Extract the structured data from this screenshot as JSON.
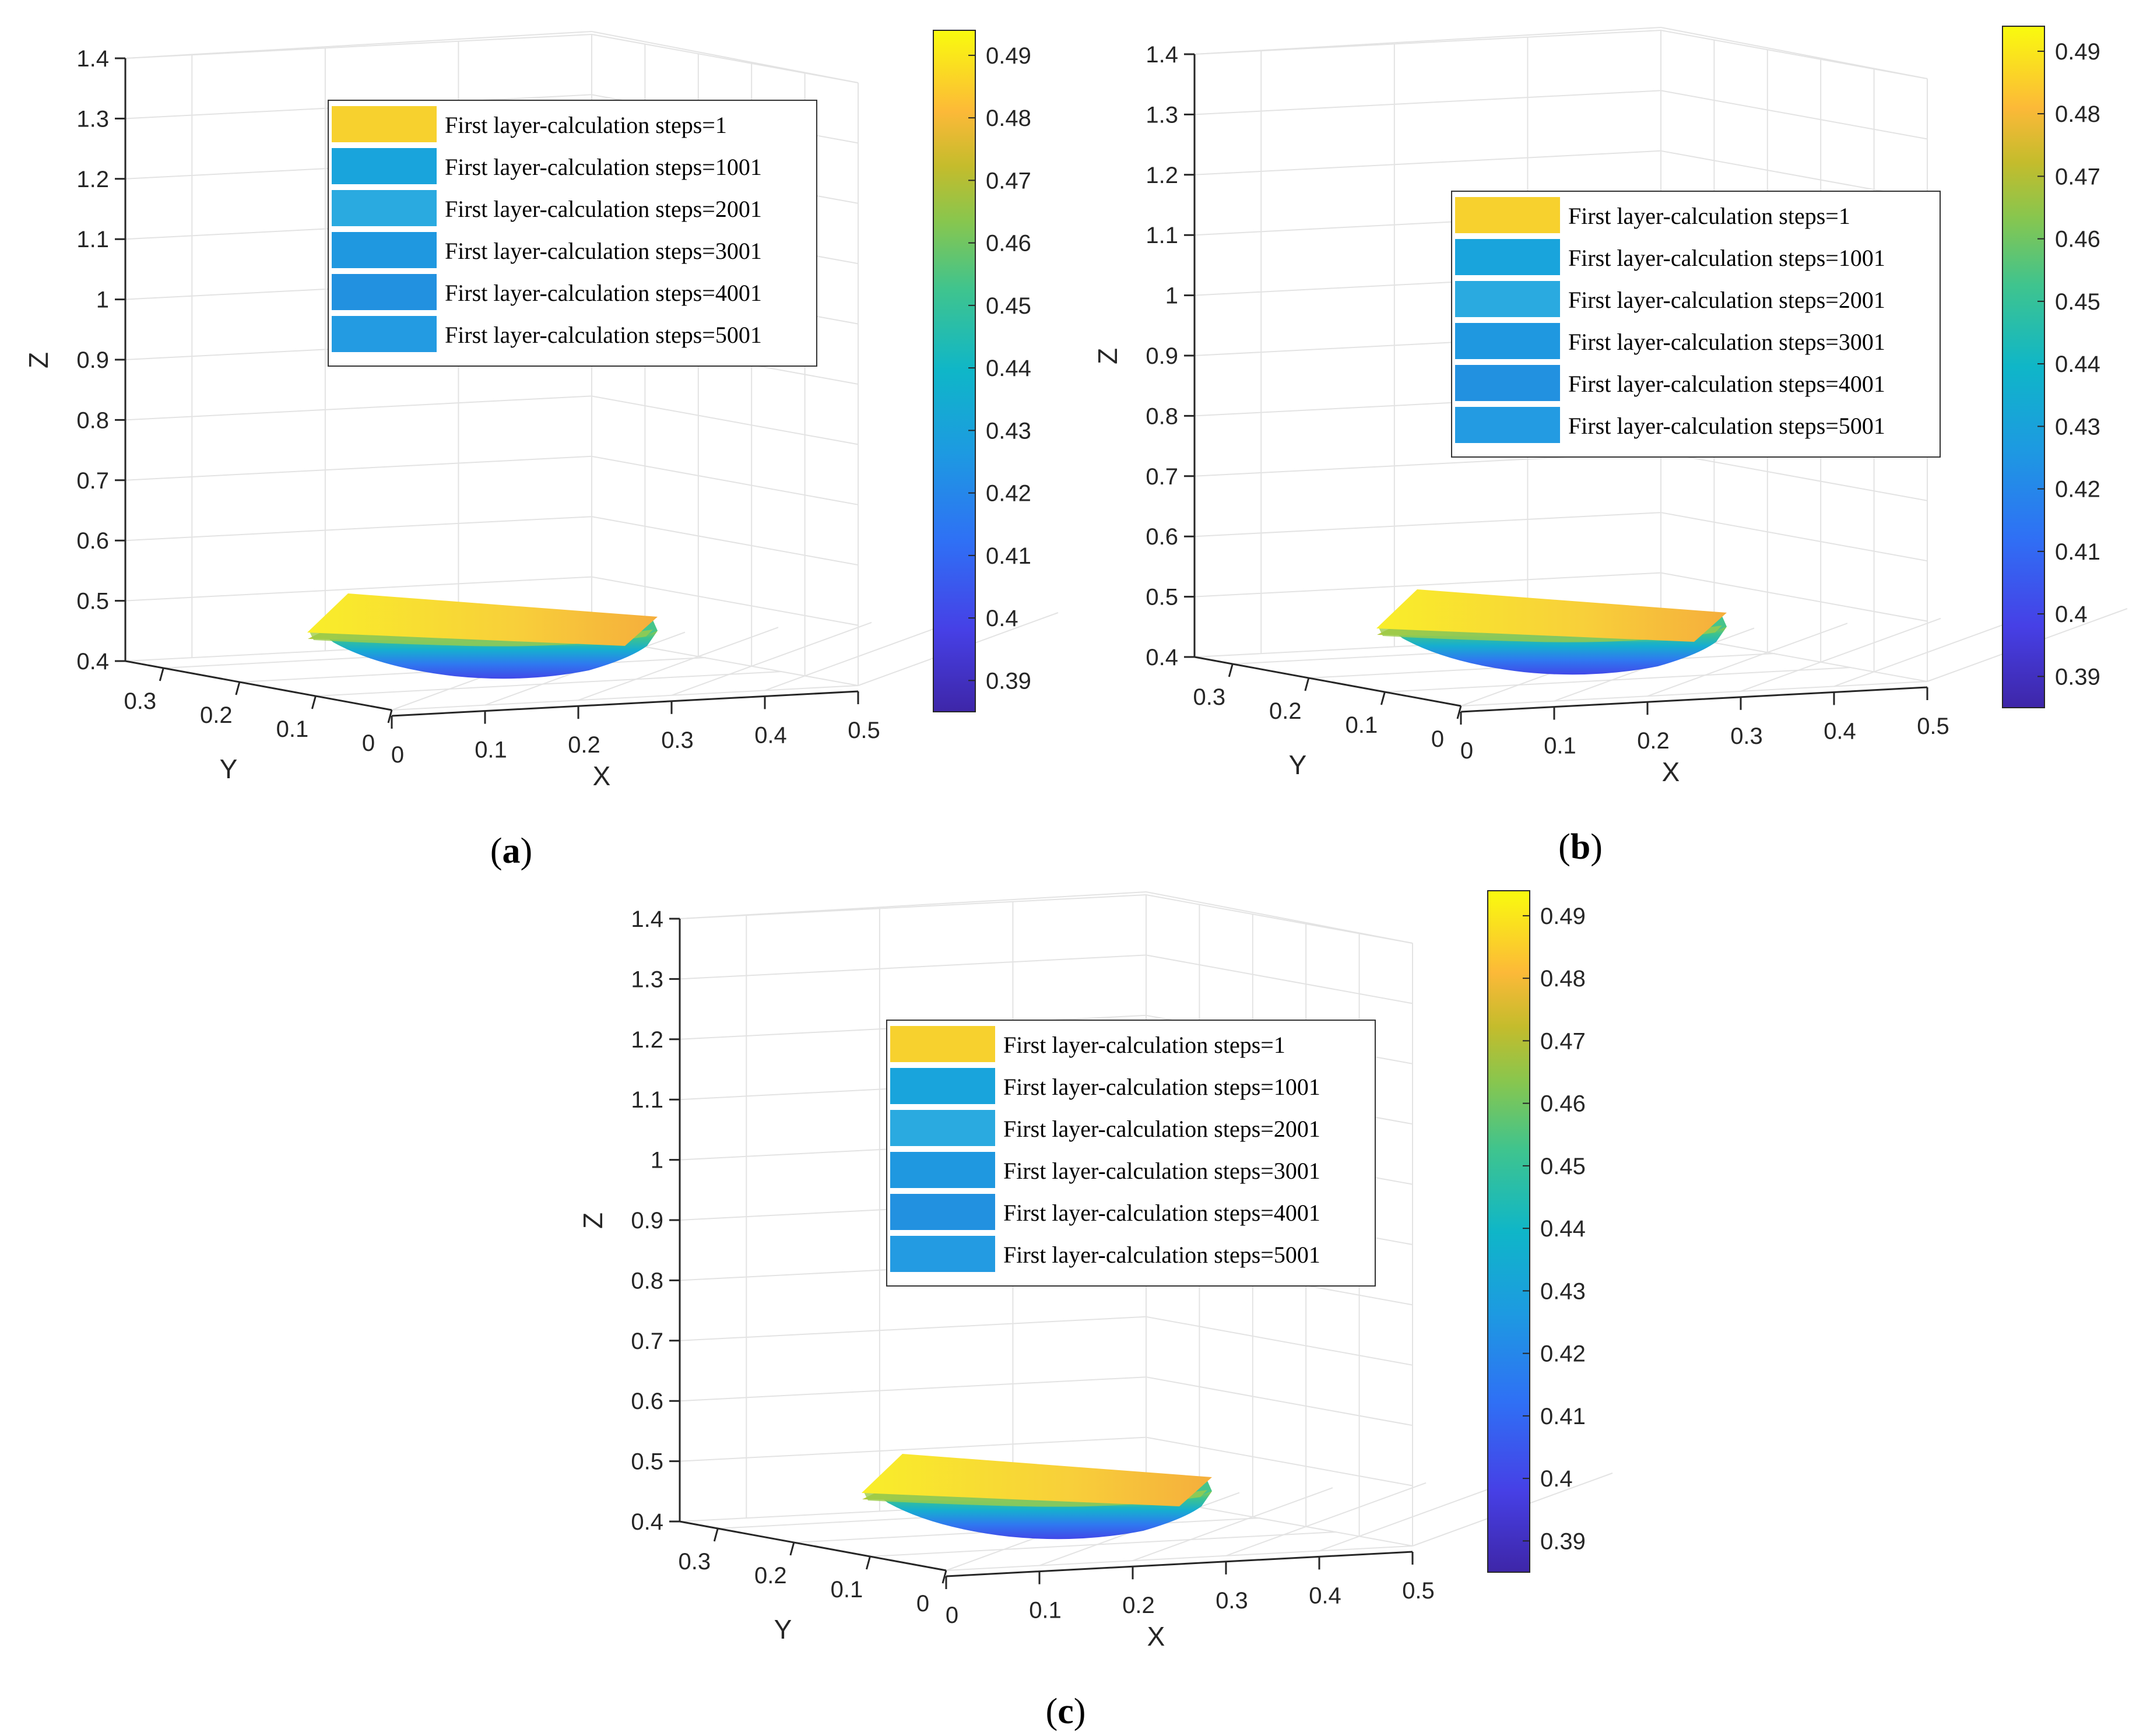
{
  "colors": {
    "yellow_surface": "#f7d23a",
    "orange_surface": "#f5b13c",
    "grid": "#e3e3e3",
    "axis": "#262626",
    "legend_swatches": [
      "#f7d12e",
      "#19a4dc",
      "#2aaae0",
      "#1f98e0",
      "#2291e0",
      "#239be2"
    ]
  },
  "chart_data": [
    {
      "panel_label": "a",
      "type": "surface3d",
      "xlabel": "X",
      "ylabel": "Y",
      "zlabel": "Z",
      "xlim": [
        0,
        0.5
      ],
      "ylim": [
        0,
        0.35
      ],
      "zlim": [
        0.4,
        1.4
      ],
      "x_ticks": [
        "0",
        "0.1",
        "0.2",
        "0.3",
        "0.4",
        "0.5"
      ],
      "y_ticks": [
        "0",
        "0.1",
        "0.2",
        "0.3"
      ],
      "z_ticks": [
        "0.4",
        "0.5",
        "0.6",
        "0.7",
        "0.8",
        "0.9",
        "1",
        "1.1",
        "1.2",
        "1.3",
        "1.4"
      ],
      "colorbar": {
        "range": [
          0.385,
          0.494
        ],
        "ticks": [
          "0.39",
          "0.4",
          "0.41",
          "0.42",
          "0.43",
          "0.44",
          "0.45",
          "0.46",
          "0.47",
          "0.48",
          "0.49"
        ]
      },
      "legend": [
        "First layer-calculation steps=1",
        "First layer-calculation steps=1001",
        "First layer-calculation steps=2001",
        "First layer-calculation steps=3001",
        "First layer-calculation steps=4001",
        "First layer-calculation steps=5001"
      ],
      "surface": {
        "top_z": 0.49,
        "bottom_z": 0.4
      }
    },
    {
      "panel_label": "b",
      "type": "surface3d",
      "xlabel": "X",
      "ylabel": "Y",
      "zlabel": "Z",
      "xlim": [
        0,
        0.5
      ],
      "ylim": [
        0,
        0.35
      ],
      "zlim": [
        0.4,
        1.4
      ],
      "x_ticks": [
        "0",
        "0.1",
        "0.2",
        "0.3",
        "0.4",
        "0.5"
      ],
      "y_ticks": [
        "0",
        "0.1",
        "0.2",
        "0.3"
      ],
      "z_ticks": [
        "0.4",
        "0.5",
        "0.6",
        "0.7",
        "0.8",
        "0.9",
        "1",
        "1.1",
        "1.2",
        "1.3",
        "1.4"
      ],
      "colorbar": {
        "range": [
          0.385,
          0.494
        ],
        "ticks": [
          "0.39",
          "0.4",
          "0.41",
          "0.42",
          "0.43",
          "0.44",
          "0.45",
          "0.46",
          "0.47",
          "0.48",
          "0.49"
        ]
      },
      "legend": [
        "First layer-calculation steps=1",
        "First layer-calculation steps=1001",
        "First layer-calculation steps=2001",
        "First layer-calculation steps=3001",
        "First layer-calculation steps=4001",
        "First layer-calculation steps=5001"
      ],
      "surface": {
        "top_z": 0.49,
        "bottom_z": 0.4
      }
    },
    {
      "panel_label": "c",
      "type": "surface3d",
      "xlabel": "X",
      "ylabel": "Y",
      "zlabel": "Z",
      "xlim": [
        0,
        0.5
      ],
      "ylim": [
        0,
        0.35
      ],
      "zlim": [
        0.4,
        1.4
      ],
      "x_ticks": [
        "0",
        "0.1",
        "0.2",
        "0.3",
        "0.4",
        "0.5"
      ],
      "y_ticks": [
        "0",
        "0.1",
        "0.2",
        "0.3"
      ],
      "z_ticks": [
        "0.4",
        "0.5",
        "0.6",
        "0.7",
        "0.8",
        "0.9",
        "1",
        "1.1",
        "1.2",
        "1.3",
        "1.4"
      ],
      "colorbar": {
        "range": [
          0.385,
          0.494
        ],
        "ticks": [
          "0.39",
          "0.4",
          "0.41",
          "0.42",
          "0.43",
          "0.44",
          "0.45",
          "0.46",
          "0.47",
          "0.48",
          "0.49"
        ]
      },
      "legend": [
        "First layer-calculation steps=1",
        "First layer-calculation steps=1001",
        "First layer-calculation steps=2001",
        "First layer-calculation steps=3001",
        "First layer-calculation steps=4001",
        "First layer-calculation steps=5001"
      ],
      "surface": {
        "top_z": 0.49,
        "bottom_z": 0.4
      }
    }
  ]
}
